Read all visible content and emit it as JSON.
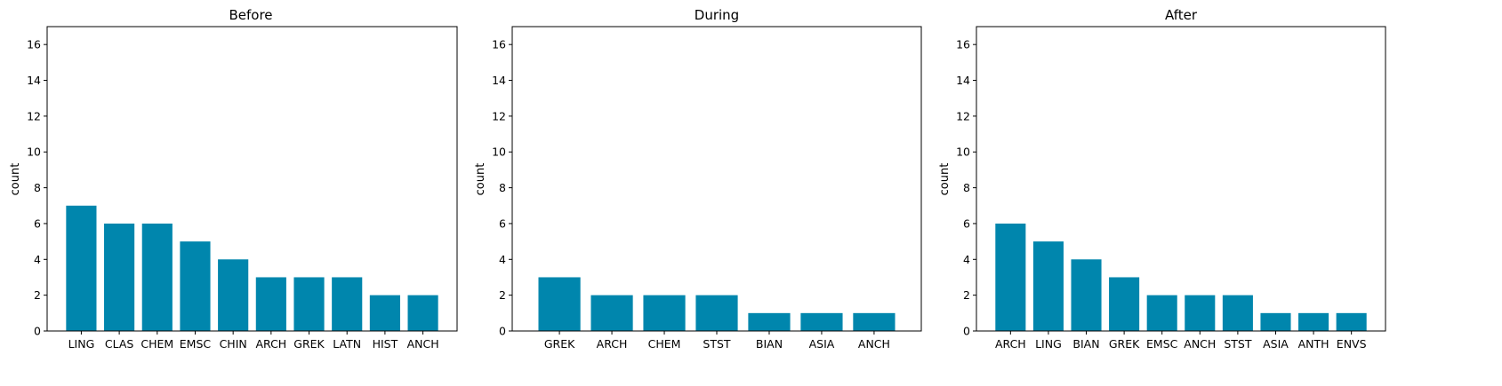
{
  "chart_data": [
    {
      "type": "bar",
      "title": "Before",
      "xlabel": "",
      "ylabel": "count",
      "ylim": [
        0,
        17
      ],
      "yticks": [
        0,
        2,
        4,
        6,
        8,
        10,
        12,
        14,
        16
      ],
      "categories": [
        "LING",
        "CLAS",
        "CHEM",
        "EMSC",
        "CHIN",
        "ARCH",
        "GREK",
        "LATN",
        "HIST",
        "ANCH"
      ],
      "values": [
        7,
        6,
        6,
        5,
        4,
        3,
        3,
        3,
        2,
        2
      ],
      "bar_color": "#0086ad",
      "grid": false
    },
    {
      "type": "bar",
      "title": "During",
      "xlabel": "",
      "ylabel": "count",
      "ylim": [
        0,
        17
      ],
      "yticks": [
        0,
        2,
        4,
        6,
        8,
        10,
        12,
        14,
        16
      ],
      "categories": [
        "GREK",
        "ARCH",
        "CHEM",
        "STST",
        "BIAN",
        "ASIA",
        "ANCH"
      ],
      "values": [
        3,
        2,
        2,
        2,
        1,
        1,
        1
      ],
      "bar_color": "#0086ad",
      "grid": false
    },
    {
      "type": "bar",
      "title": "After",
      "xlabel": "",
      "ylabel": "count",
      "ylim": [
        0,
        17
      ],
      "yticks": [
        0,
        2,
        4,
        6,
        8,
        10,
        12,
        14,
        16
      ],
      "categories": [
        "ARCH",
        "LING",
        "BIAN",
        "GREK",
        "EMSC",
        "ANCH",
        "STST",
        "ASIA",
        "ANTH",
        "ENVS"
      ],
      "values": [
        6,
        5,
        4,
        3,
        2,
        2,
        2,
        1,
        1,
        1
      ],
      "bar_color": "#0086ad",
      "grid": false
    }
  ]
}
